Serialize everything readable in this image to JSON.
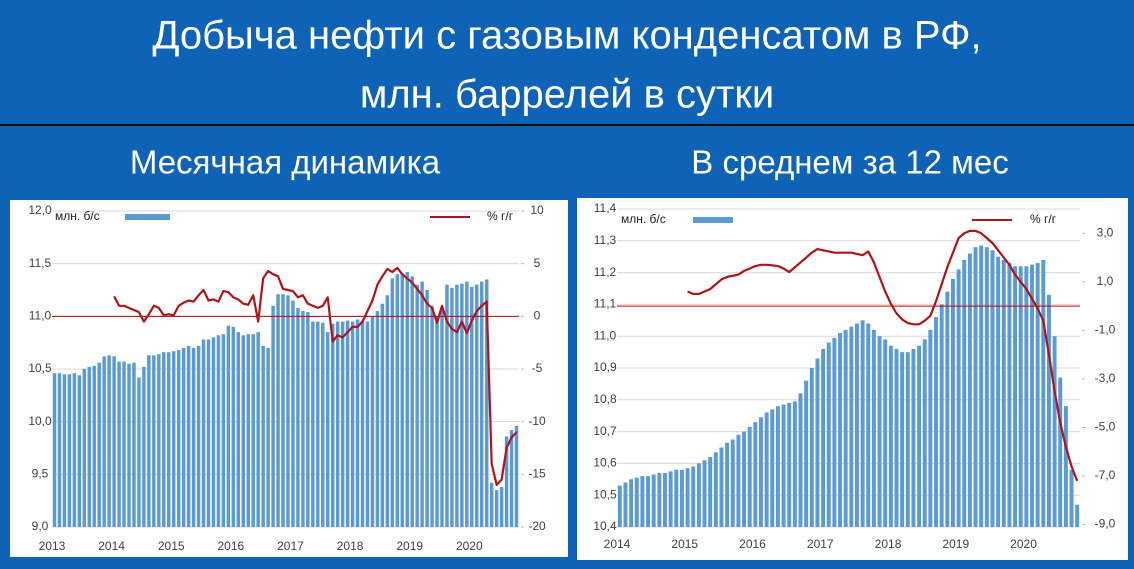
{
  "header": {
    "line1": "Добыча нефти с газовым конденсатом в РФ,",
    "line2": "млн. баррелей в сутки"
  },
  "chart_data": [
    {
      "type": "bar-line",
      "title": "Месячная динамика",
      "categories": [
        "2013",
        null,
        null,
        null,
        null,
        null,
        null,
        null,
        null,
        null,
        null,
        null,
        "2014",
        null,
        null,
        null,
        null,
        null,
        null,
        null,
        null,
        null,
        null,
        null,
        "2015",
        null,
        null,
        null,
        null,
        null,
        null,
        null,
        null,
        null,
        null,
        null,
        "2016",
        null,
        null,
        null,
        null,
        null,
        null,
        null,
        null,
        null,
        null,
        null,
        "2017",
        null,
        null,
        null,
        null,
        null,
        null,
        null,
        null,
        null,
        null,
        null,
        "2018",
        null,
        null,
        null,
        null,
        null,
        null,
        null,
        null,
        null,
        null,
        null,
        "2019",
        null,
        null,
        null,
        null,
        null,
        null,
        null,
        null,
        null,
        null,
        null,
        "2020",
        null,
        null,
        null,
        null,
        null,
        null,
        null,
        null,
        null
      ],
      "series": [
        {
          "name": "млн. б/с",
          "color": "#5b9bd5",
          "kind": "bar",
          "values": [
            10.46,
            10.46,
            10.45,
            10.45,
            10.46,
            10.44,
            10.5,
            10.52,
            10.53,
            10.56,
            10.62,
            10.63,
            10.62,
            10.57,
            10.57,
            10.55,
            10.56,
            10.42,
            10.52,
            10.63,
            10.63,
            10.64,
            10.66,
            10.66,
            10.67,
            10.68,
            10.7,
            10.72,
            10.7,
            10.72,
            10.78,
            10.78,
            10.8,
            10.82,
            10.83,
            10.91,
            10.9,
            10.85,
            10.82,
            10.83,
            10.83,
            10.85,
            10.72,
            10.7,
            11.1,
            11.21,
            11.21,
            11.2,
            11.15,
            11.08,
            11.05,
            11.04,
            10.95,
            10.95,
            10.94,
            10.85,
            10.93,
            10.95,
            10.95,
            10.96,
            10.95,
            10.97,
            10.96,
            10.95,
            11.0,
            11.05,
            11.12,
            11.2,
            11.36,
            11.4,
            11.41,
            11.42,
            11.38,
            11.3,
            11.33,
            11.25,
            11.1,
            11.0,
            11.08,
            11.3,
            11.27,
            11.3,
            11.31,
            11.33,
            11.28,
            11.3,
            11.33,
            11.35,
            9.42,
            9.35,
            9.38,
            9.86,
            9.92,
            9.96
          ]
        },
        {
          "name": "% г/г",
          "color": "#b0141a",
          "kind": "line",
          "axis": "y2",
          "values": [
            null,
            null,
            null,
            null,
            null,
            null,
            null,
            null,
            null,
            null,
            null,
            null,
            1.9,
            1.0,
            1.0,
            0.8,
            0.6,
            0.4,
            -0.5,
            0.2,
            1.0,
            0.8,
            0.1,
            0.2,
            0.1,
            1.0,
            1.3,
            1.5,
            1.4,
            2.0,
            2.5,
            1.5,
            1.6,
            1.4,
            2.4,
            2.3,
            1.8,
            1.6,
            1.2,
            1.1,
            2.0,
            -0.5,
            3.6,
            4.3,
            4.0,
            3.8,
            2.6,
            2.5,
            2.4,
            1.8,
            2.0,
            1.2,
            1.0,
            0.8,
            1.0,
            1.8,
            -2.4,
            -1.8,
            -2.0,
            -1.5,
            -1.0,
            -1.0,
            -0.5,
            0.5,
            1.5,
            3.0,
            3.8,
            4.5,
            4.2,
            4.6,
            4.0,
            3.6,
            3.2,
            2.6,
            2.0,
            1.2,
            0.8,
            -0.6,
            1.0,
            -0.5,
            -1.2,
            -1.5,
            -0.5,
            -1.6,
            -0.4,
            0.5,
            1.0,
            1.4,
            -14.0,
            -16.0,
            -15.5,
            -12.5,
            -11.5,
            -11.0
          ]
        }
      ],
      "ylim": [
        9,
        12
      ],
      "yticks": [
        {
          "value": 9,
          "label": "9,0"
        },
        {
          "value": 9.5,
          "label": "9,5"
        },
        {
          "value": 10,
          "label": "10,0"
        },
        {
          "value": 10.5,
          "label": "10,5"
        },
        {
          "value": 11,
          "label": "11,0"
        },
        {
          "value": 11.5,
          "label": "11,5"
        },
        {
          "value": 12,
          "label": "12,0"
        }
      ],
      "y2lim": [
        -20,
        10
      ],
      "y2ticks": [
        -20,
        -15,
        -10,
        -5,
        0,
        5,
        10
      ],
      "grid": true
    },
    {
      "type": "bar-line",
      "title": "В среднем за 12 мес",
      "categories": [
        "2014",
        null,
        null,
        null,
        null,
        null,
        null,
        null,
        null,
        null,
        null,
        null,
        "2015",
        null,
        null,
        null,
        null,
        null,
        null,
        null,
        null,
        null,
        null,
        null,
        "2016",
        null,
        null,
        null,
        null,
        null,
        null,
        null,
        null,
        null,
        null,
        null,
        "2017",
        null,
        null,
        null,
        null,
        null,
        null,
        null,
        null,
        null,
        null,
        null,
        "2018",
        null,
        null,
        null,
        null,
        null,
        null,
        null,
        null,
        null,
        null,
        null,
        "2019",
        null,
        null,
        null,
        null,
        null,
        null,
        null,
        null,
        null,
        null,
        null,
        "2020",
        null,
        null,
        null,
        null,
        null,
        null,
        null,
        null,
        null
      ],
      "series": [
        {
          "name": "млн. б/с",
          "color": "#5b9bd5",
          "kind": "bar",
          "values": [
            10.53,
            10.54,
            10.55,
            10.555,
            10.56,
            10.56,
            10.565,
            10.57,
            10.57,
            10.575,
            10.58,
            10.58,
            10.585,
            10.59,
            10.6,
            10.61,
            10.62,
            10.635,
            10.65,
            10.665,
            10.675,
            10.69,
            10.7,
            10.715,
            10.73,
            10.745,
            10.76,
            10.77,
            10.78,
            10.785,
            10.79,
            10.795,
            10.82,
            10.86,
            10.9,
            10.93,
            10.96,
            10.98,
            10.995,
            11.01,
            11.02,
            11.03,
            11.04,
            11.05,
            11.04,
            11.02,
            11.0,
            10.99,
            10.97,
            10.96,
            10.95,
            10.95,
            10.96,
            10.97,
            10.99,
            11.02,
            11.06,
            11.1,
            11.14,
            11.18,
            11.21,
            11.24,
            11.26,
            11.28,
            11.285,
            11.28,
            11.27,
            11.25,
            11.24,
            11.23,
            11.22,
            11.22,
            11.22,
            11.225,
            11.23,
            11.24,
            11.13,
            11.0,
            10.87,
            10.78,
            10.58,
            10.47
          ]
        },
        {
          "name": "% г/г",
          "color": "#b0141a",
          "kind": "line",
          "axis": "y2",
          "values": [
            null,
            null,
            null,
            null,
            null,
            null,
            null,
            null,
            null,
            null,
            null,
            null,
            0.6,
            0.5,
            0.5,
            0.6,
            0.7,
            0.9,
            1.1,
            1.2,
            1.25,
            1.3,
            1.45,
            1.55,
            1.65,
            1.7,
            1.7,
            1.68,
            1.65,
            1.55,
            1.4,
            1.6,
            1.8,
            2.0,
            2.2,
            2.35,
            2.3,
            2.25,
            2.2,
            2.2,
            2.2,
            2.2,
            2.15,
            2.1,
            2.25,
            1.8,
            1.2,
            0.6,
            0.1,
            -0.3,
            -0.55,
            -0.7,
            -0.75,
            -0.75,
            -0.6,
            -0.4,
            0.2,
            0.9,
            1.6,
            2.2,
            2.8,
            3.0,
            3.1,
            3.1,
            3.0,
            2.8,
            2.6,
            2.3,
            2.0,
            1.7,
            1.3,
            1.0,
            0.7,
            0.3,
            -0.1,
            -0.6,
            -2.0,
            -3.5,
            -4.8,
            -5.8,
            -6.6,
            -7.2
          ]
        }
      ],
      "ylim": [
        10.4,
        11.4
      ],
      "yticks": [
        {
          "value": 10.4,
          "label": "10,4"
        },
        {
          "value": 10.5,
          "label": "10,5"
        },
        {
          "value": 10.6,
          "label": "10,6"
        },
        {
          "value": 10.7,
          "label": "10,7"
        },
        {
          "value": 10.8,
          "label": "10,8"
        },
        {
          "value": 10.9,
          "label": "10,9"
        },
        {
          "value": 11,
          "label": "11,0"
        },
        {
          "value": 11.1,
          "label": "11,1"
        },
        {
          "value": 11.2,
          "label": "11,2"
        },
        {
          "value": 11.3,
          "label": "11,3"
        },
        {
          "value": 11.4,
          "label": "11,4"
        }
      ],
      "y2lim": [
        -9.1,
        4.0
      ],
      "y2ticks": [
        {
          "value": 3,
          "label": "3,0"
        },
        {
          "value": 1,
          "label": "1,0"
        },
        {
          "value": -1,
          "label": "-1,0"
        },
        {
          "value": -3,
          "label": "-3,0"
        },
        {
          "value": -5,
          "label": "-5,0"
        },
        {
          "value": -7,
          "label": "-7,0"
        },
        {
          "value": -9,
          "label": "-9,0"
        }
      ],
      "grid": true
    }
  ]
}
